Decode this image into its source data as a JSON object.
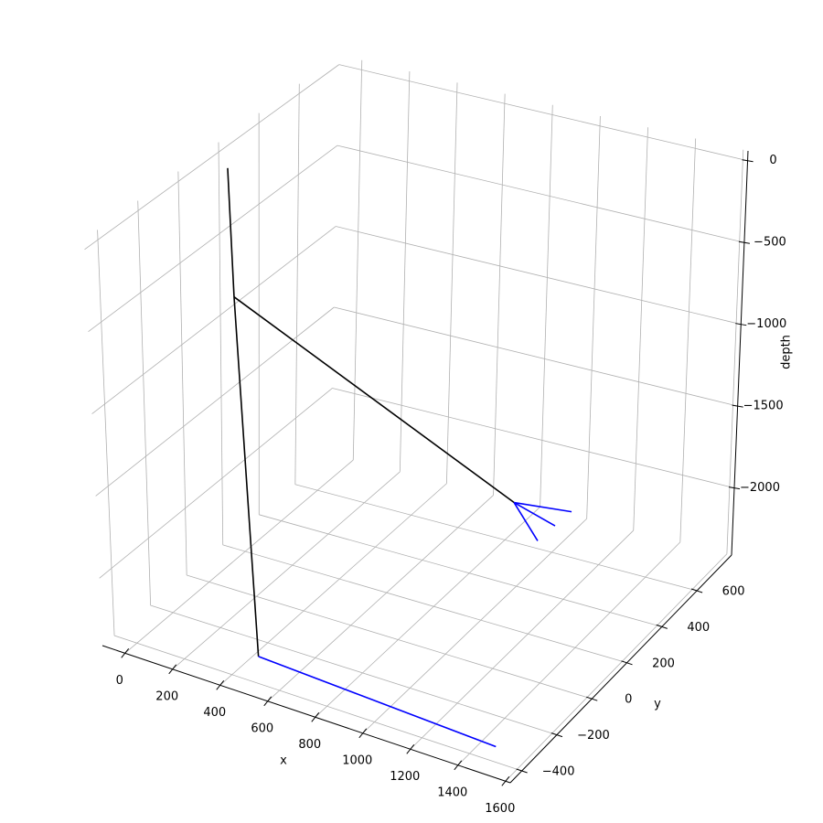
{
  "chart_data": {
    "type": "line3d",
    "xlabel": "x",
    "ylabel": "y",
    "zlabel": "depth",
    "xlim": [
      -95,
      1620
    ],
    "ylim": [
      -466,
      798
    ],
    "zlim": [
      -2410,
      60
    ],
    "xticks": [
      0,
      200,
      400,
      600,
      800,
      1000,
      1200,
      1400,
      1600
    ],
    "yticks": [
      {
        "value": -400,
        "label": "−400"
      },
      {
        "value": -200,
        "label": "−200"
      },
      0,
      200,
      400,
      600
    ],
    "zticks": [
      0,
      {
        "value": -500,
        "label": "−500"
      },
      {
        "value": -1000,
        "label": "−1000"
      },
      {
        "value": -1500,
        "label": "−1500"
      },
      {
        "value": -2000,
        "label": "−2000"
      }
    ],
    "grid": true,
    "series": [
      {
        "color": "#000000",
        "x": [
          0,
          20,
          460
        ],
        "y": [
          130,
          130,
          -330
        ],
        "z": [
          0,
          -780,
          -2340
        ]
      },
      {
        "color": "#000000",
        "x": [
          20,
          1060
        ],
        "y": [
          130,
          300
        ],
        "z": [
          -780,
          -1780
        ]
      },
      {
        "color": "#0000ff",
        "x": [
          460,
          1500
        ],
        "y": [
          -330,
          -385
        ],
        "z": [
          -2340,
          -2340
        ]
      },
      {
        "color": "#0000ff",
        "x": [
          1060,
          1280
        ],
        "y": [
          300,
          330
        ],
        "z": [
          -1780,
          -1780
        ]
      },
      {
        "color": "#0000ff",
        "x": [
          1060,
          1275
        ],
        "y": [
          300,
          245
        ],
        "z": [
          -1780,
          -1780
        ]
      },
      {
        "color": "#0000ff",
        "x": [
          1060,
          1270
        ],
        "y": [
          300,
          155
        ],
        "z": [
          -1780,
          -1780
        ]
      }
    ]
  }
}
